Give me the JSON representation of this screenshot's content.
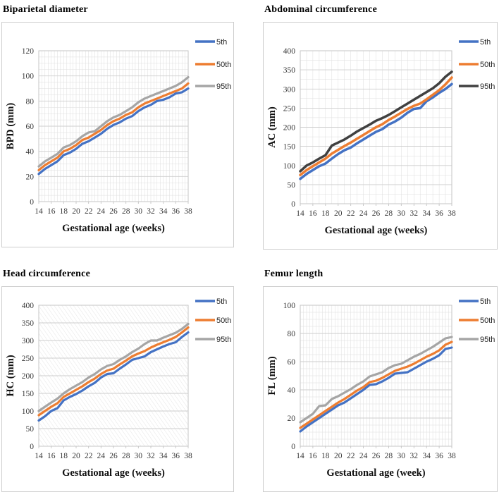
{
  "page": {
    "background": "#ffffff"
  },
  "legend_labels": [
    "5th",
    "50th",
    "95th"
  ],
  "palette": {
    "p5": "#4472C4",
    "p50": "#ED7D31",
    "p95_light": "#A5A5A5",
    "p95_dark": "#404040"
  },
  "chart_data": [
    {
      "type": "line",
      "title": "Biparietal diameter",
      "xlabel": "Gestational age (weeks)",
      "ylabel": "BPD (mm)",
      "x": [
        14,
        15,
        16,
        17,
        18,
        19,
        20,
        21,
        22,
        23,
        24,
        25,
        26,
        27,
        28,
        29,
        30,
        31,
        32,
        33,
        34,
        35,
        36,
        37,
        38
      ],
      "xticks": [
        14,
        16,
        18,
        20,
        22,
        24,
        26,
        28,
        30,
        32,
        34,
        36,
        38
      ],
      "ylim": [
        0,
        120
      ],
      "ytick_step": 20,
      "grid": {
        "minor_x": 0.5,
        "minor_y": 5,
        "hatch": false
      },
      "line_width": 3.2,
      "legend_position": "right",
      "series": [
        {
          "name": "5th",
          "color": "#4472C4",
          "values": [
            22,
            26,
            29,
            32,
            37,
            39,
            42,
            46,
            48,
            51,
            54,
            58,
            61,
            63,
            66,
            68,
            72,
            75,
            77,
            80,
            81,
            83,
            86,
            87,
            90
          ]
        },
        {
          "name": "50th",
          "color": "#ED7D31",
          "values": [
            25,
            29,
            32,
            35,
            40,
            42,
            45,
            49,
            51,
            54,
            57,
            61,
            64,
            66,
            69,
            71,
            75,
            78,
            80,
            82,
            84,
            86,
            88,
            90,
            94
          ]
        },
        {
          "name": "95th",
          "color": "#A5A5A5",
          "values": [
            28,
            32,
            35,
            38,
            43,
            45,
            48,
            52,
            55,
            56,
            60,
            64,
            67,
            69,
            72,
            75,
            79,
            82,
            84,
            86,
            88,
            90,
            92,
            95,
            99
          ]
        }
      ]
    },
    {
      "type": "line",
      "title": "Abdominal circumference",
      "xlabel": "Gestational age (weeks)",
      "ylabel": "AC (mm)",
      "x": [
        14,
        15,
        16,
        17,
        18,
        19,
        20,
        21,
        22,
        23,
        24,
        25,
        26,
        27,
        28,
        29,
        30,
        31,
        32,
        33,
        34,
        35,
        36,
        37,
        38
      ],
      "xticks": [
        14,
        16,
        18,
        20,
        22,
        24,
        26,
        28,
        30,
        32,
        34,
        36,
        38
      ],
      "ylim": [
        0,
        400
      ],
      "ytick_step": 50,
      "grid": {
        "minor_x": 1,
        "minor_y": 25,
        "hatch": false
      },
      "line_width": 3.5,
      "legend_position": "right",
      "series": [
        {
          "name": "5th",
          "color": "#4472C4",
          "values": [
            65,
            78,
            88,
            98,
            105,
            118,
            130,
            140,
            147,
            158,
            168,
            178,
            188,
            195,
            207,
            215,
            225,
            238,
            248,
            250,
            268,
            278,
            290,
            300,
            313
          ]
        },
        {
          "name": "50th",
          "color": "#ED7D31",
          "values": [
            75,
            88,
            98,
            108,
            118,
            131,
            141,
            151,
            160,
            170,
            180,
            190,
            200,
            208,
            219,
            228,
            238,
            248,
            256,
            262,
            273,
            285,
            297,
            312,
            330
          ]
        },
        {
          "name": "95th",
          "color": "#404040",
          "values": [
            85,
            100,
            108,
            118,
            127,
            152,
            160,
            168,
            178,
            189,
            198,
            207,
            217,
            224,
            232,
            242,
            252,
            262,
            272,
            282,
            292,
            302,
            315,
            332,
            345
          ]
        }
      ]
    },
    {
      "type": "line",
      "title": "Head circumference",
      "xlabel": "Gestational age (weeks)",
      "ylabel": "HC (mm)",
      "x": [
        14,
        15,
        16,
        17,
        18,
        19,
        20,
        21,
        22,
        23,
        24,
        25,
        26,
        27,
        28,
        29,
        30,
        31,
        32,
        33,
        34,
        35,
        36,
        37,
        38
      ],
      "xticks": [
        14,
        16,
        18,
        20,
        22,
        24,
        26,
        28,
        30,
        32,
        34,
        36,
        38
      ],
      "ylim": [
        0,
        400
      ],
      "ytick_step": 50,
      "grid": {
        "minor_x": 0,
        "minor_y": 50,
        "hatch": true
      },
      "line_width": 3.2,
      "legend_position": "right",
      "series": [
        {
          "name": "5th",
          "color": "#4472C4",
          "values": [
            73,
            85,
            100,
            108,
            130,
            140,
            148,
            158,
            170,
            180,
            195,
            205,
            207,
            220,
            232,
            245,
            250,
            255,
            267,
            275,
            283,
            290,
            295,
            310,
            323
          ]
        },
        {
          "name": "50th",
          "color": "#ED7D31",
          "values": [
            88,
            100,
            112,
            122,
            140,
            150,
            160,
            170,
            182,
            192,
            205,
            215,
            220,
            232,
            243,
            255,
            263,
            270,
            280,
            288,
            295,
            302,
            310,
            323,
            337
          ]
        },
        {
          "name": "95th",
          "color": "#A5A5A5",
          "values": [
            100,
            112,
            124,
            135,
            150,
            162,
            172,
            182,
            195,
            205,
            218,
            228,
            233,
            245,
            255,
            267,
            277,
            290,
            300,
            300,
            308,
            315,
            322,
            333,
            347
          ]
        }
      ]
    },
    {
      "type": "line",
      "title": "Femur length",
      "xlabel": "Gestational age (week)",
      "ylabel": "FL (mm)",
      "x": [
        14,
        15,
        16,
        17,
        18,
        19,
        20,
        21,
        22,
        23,
        24,
        25,
        26,
        27,
        28,
        29,
        30,
        31,
        32,
        33,
        34,
        35,
        36,
        37,
        38
      ],
      "xticks": [
        14,
        16,
        18,
        20,
        22,
        24,
        26,
        28,
        30,
        32,
        34,
        36,
        38
      ],
      "ylim": [
        0,
        100
      ],
      "ytick_step": 20,
      "grid": {
        "minor_x": 0.5,
        "minor_y": 5,
        "hatch": false
      },
      "line_width": 3.2,
      "legend_position": "right",
      "series": [
        {
          "name": "5th",
          "color": "#4472C4",
          "values": [
            10.5,
            14,
            17,
            20,
            23,
            26,
            29,
            31,
            34,
            37,
            40,
            43.5,
            44,
            46,
            48.5,
            51.5,
            52,
            52.5,
            55,
            57.5,
            60,
            62,
            64.5,
            69,
            70
          ]
        },
        {
          "name": "50th",
          "color": "#ED7D31",
          "values": [
            13,
            16,
            19,
            22,
            25,
            28,
            31,
            33.5,
            36.5,
            39.5,
            42,
            45.5,
            46.5,
            48.5,
            51,
            53.5,
            55,
            56.5,
            58.5,
            61,
            63.5,
            65.5,
            68,
            72,
            74
          ]
        },
        {
          "name": "95th",
          "color": "#A5A5A5",
          "values": [
            17,
            20,
            23,
            28.5,
            29,
            33.5,
            35.5,
            38,
            40.5,
            43.5,
            46,
            49.5,
            51,
            52.5,
            55.5,
            57.5,
            58.5,
            61,
            63.5,
            65.5,
            68,
            70.5,
            73.5,
            76.5,
            77.5
          ]
        }
      ]
    }
  ]
}
